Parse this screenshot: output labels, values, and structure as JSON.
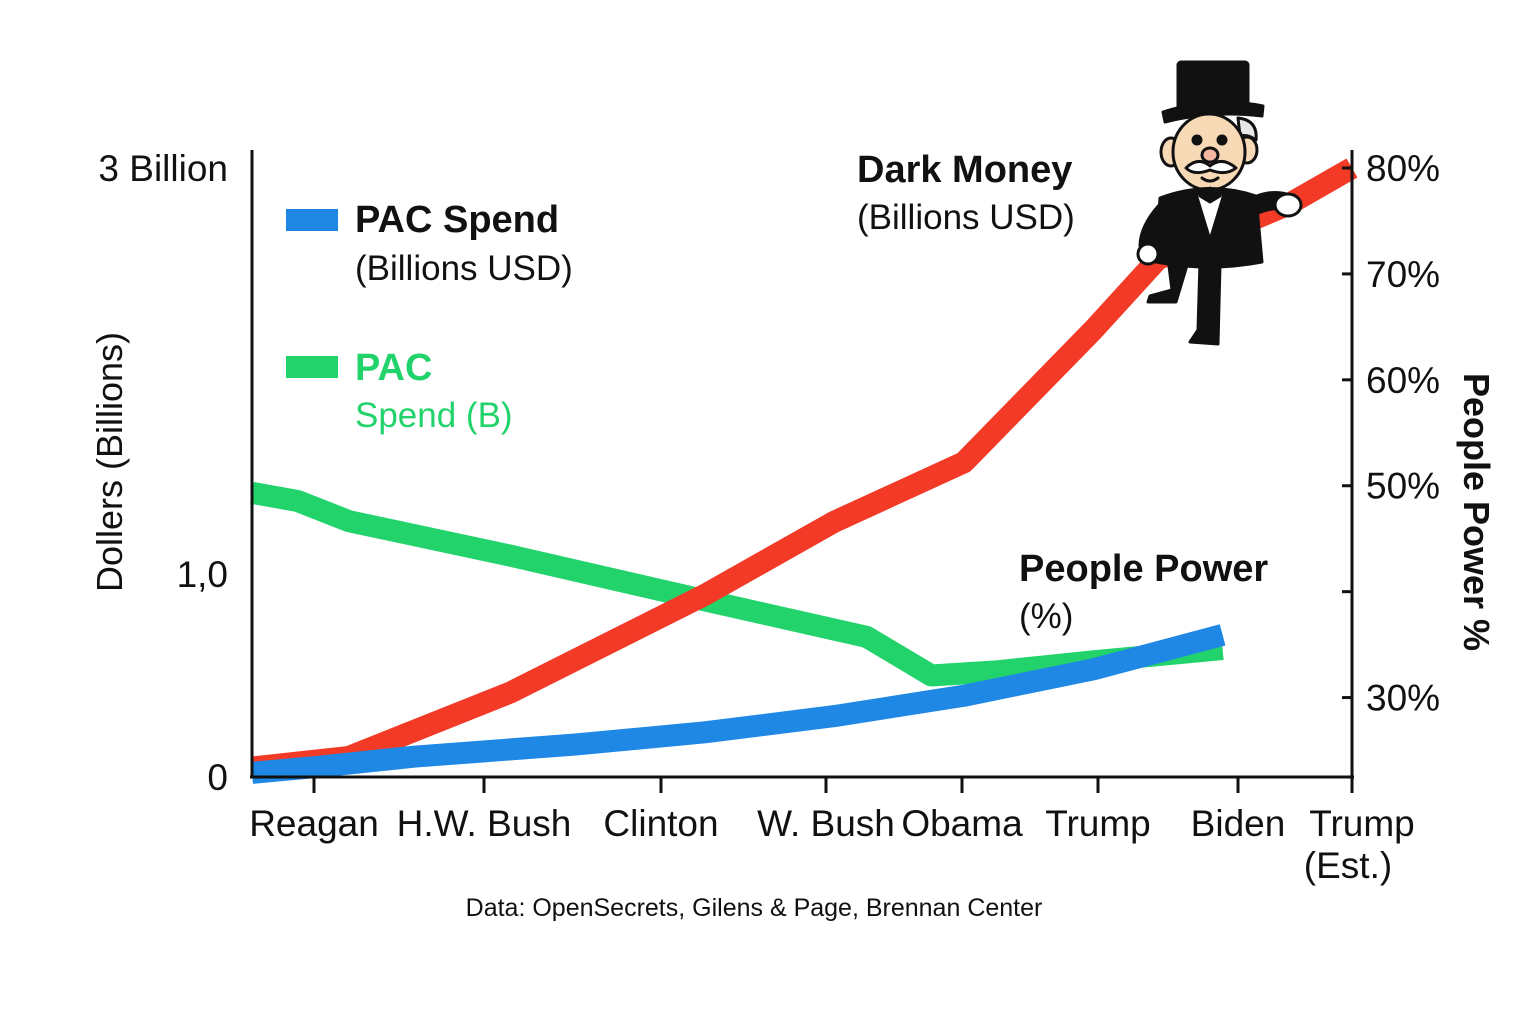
{
  "chart_data": {
    "type": "line",
    "title": "",
    "source": "Data: OpenSecrets, Gilens & Page, Brennan Center",
    "x_categories": [
      {
        "line1": "Reagan",
        "line2": ""
      },
      {
        "line1": "H.W. Bush",
        "line2": ""
      },
      {
        "line1": "Clinton",
        "line2": ""
      },
      {
        "line1": "W. Bush",
        "line2": ""
      },
      {
        "line1": "Obama",
        "line2": ""
      },
      {
        "line1": "Trump",
        "line2": ""
      },
      {
        "line1": "Biden",
        "line2": ""
      },
      {
        "line1": "Trump",
        "line2": "(Est.)"
      }
    ],
    "left_axis": {
      "title": "Dollers (Billions)",
      "ticks": [
        {
          "value": 0,
          "label": "0"
        },
        {
          "value": 1.0,
          "label": "1,0"
        },
        {
          "value": 3.0,
          "label": "3 Billion"
        }
      ],
      "ylim": [
        0,
        3.0
      ]
    },
    "right_axis": {
      "title": "People Power %",
      "ticks": [
        {
          "value": 30,
          "label": "30%"
        },
        {
          "value": 40,
          "label": ""
        },
        {
          "value": 50,
          "label": "50%"
        },
        {
          "value": 60,
          "label": "60%"
        },
        {
          "value": 70,
          "label": "70%"
        },
        {
          "value": 80,
          "label": "80%"
        }
      ],
      "ylim": [
        22.5,
        80
      ]
    },
    "series": [
      {
        "key": "pac_blue",
        "name": "PAC Spend",
        "unit_label": "(Billions USD)",
        "color": "#1f88e5",
        "axis": "left",
        "points": [
          {
            "x": 0,
            "y": 0.02
          },
          {
            "x": 0.5,
            "y": 0.05
          },
          {
            "x": 1.25,
            "y": 0.1
          },
          {
            "x": 2.5,
            "y": 0.16
          },
          {
            "x": 3.5,
            "y": 0.22
          },
          {
            "x": 4.5,
            "y": 0.3
          },
          {
            "x": 5.5,
            "y": 0.4
          },
          {
            "x": 6.5,
            "y": 0.53
          },
          {
            "x": 7.5,
            "y": 0.7
          }
        ]
      },
      {
        "key": "pac_green",
        "name": "PAC",
        "unit_label": "Spend (B)",
        "color": "#22d36b",
        "axis": "left",
        "points": [
          {
            "x": 0,
            "y": 1.4
          },
          {
            "x": 0.35,
            "y": 1.36
          },
          {
            "x": 0.75,
            "y": 1.26
          },
          {
            "x": 2.0,
            "y": 1.09
          },
          {
            "x": 3.5,
            "y": 0.87
          },
          {
            "x": 4.75,
            "y": 0.69
          },
          {
            "x": 5.25,
            "y": 0.5
          },
          {
            "x": 5.75,
            "y": 0.52
          },
          {
            "x": 6.5,
            "y": 0.57
          },
          {
            "x": 7.5,
            "y": 0.63
          }
        ]
      },
      {
        "key": "dark_money",
        "name": "Dark Money",
        "unit_label": "(Billions USD)",
        "color": "#f23a26",
        "axis": "right",
        "points": [
          {
            "x": 0,
            "y": 23.4
          },
          {
            "x": 0.75,
            "y": 24.4
          },
          {
            "x": 2.0,
            "y": 30.5
          },
          {
            "x": 3.5,
            "y": 39.7
          },
          {
            "x": 4.5,
            "y": 46.6
          },
          {
            "x": 5.5,
            "y": 52.2
          },
          {
            "x": 6.5,
            "y": 64.7
          },
          {
            "x": 7.0,
            "y": 71.4
          },
          {
            "x": 8.0,
            "y": 76.5
          },
          {
            "x": 8.5,
            "y": 80.0
          }
        ]
      }
    ],
    "annotations": [
      {
        "key": "dark_money",
        "title": "Dark Money",
        "subtitle": "(Billions USD)"
      },
      {
        "key": "people_power",
        "title": "People Power",
        "subtitle": "(%)"
      }
    ],
    "legend": [
      {
        "key": "pac_blue",
        "title": "PAC Spend",
        "subtitle": "(Billions USD)",
        "color": "#1f88e5"
      },
      {
        "key": "pac_green",
        "title": "PAC",
        "subtitle": "Spend (B)",
        "color": "#22d36b"
      }
    ],
    "grid": false,
    "mascot": "monopoly-man-icon"
  }
}
